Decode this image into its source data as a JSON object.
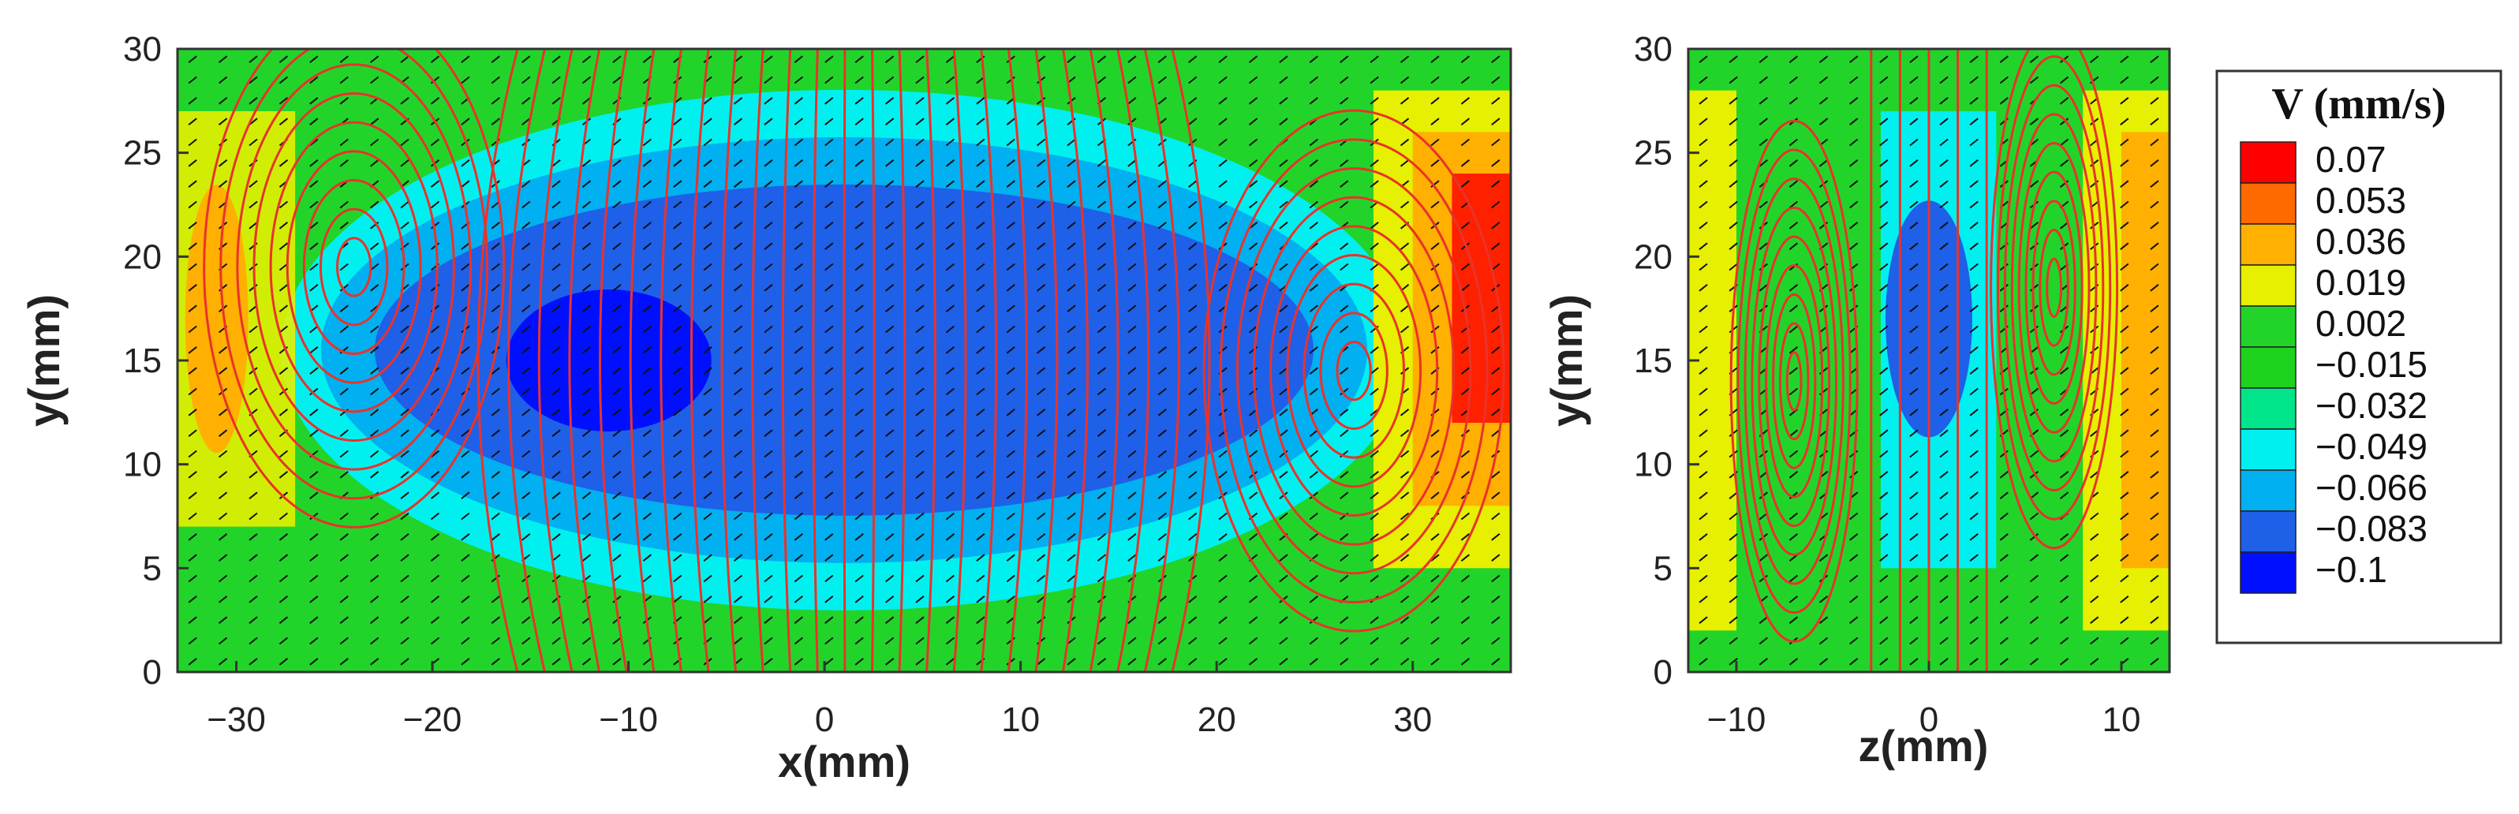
{
  "chart_data": [
    {
      "type": "heatmap",
      "panel": "x-y plane",
      "xlabel": "x(mm)",
      "ylabel": "y(mm)",
      "xlim": [
        -33,
        35
      ],
      "ylim": [
        0,
        30
      ],
      "x_ticks": [
        -30,
        -20,
        -10,
        0,
        10,
        20,
        30
      ],
      "x_tick_labels": [
        "−30",
        "−20",
        "−10",
        "0",
        "10",
        "20",
        "30"
      ],
      "y_ticks": [
        0,
        5,
        10,
        15,
        20,
        25,
        30
      ],
      "y_tick_labels": [
        "0",
        "5",
        "10",
        "15",
        "20",
        "25",
        "30"
      ],
      "vortex_centers": [
        {
          "x": -24,
          "y": 19.5
        },
        {
          "x": 27,
          "y": 14.5
        }
      ],
      "overlay": "streamlines and velocity vectors"
    },
    {
      "type": "heatmap",
      "panel": "z-y plane",
      "xlabel": "z(mm)",
      "ylabel": "y(mm)",
      "xlim": [
        -12.5,
        12.5
      ],
      "ylim": [
        0,
        30
      ],
      "x_ticks": [
        -10,
        0,
        10
      ],
      "x_tick_labels": [
        "−10",
        "0",
        "10"
      ],
      "y_ticks": [
        0,
        5,
        10,
        15,
        20,
        25,
        30
      ],
      "y_tick_labels": [
        "0",
        "5",
        "10",
        "15",
        "20",
        "25",
        "30"
      ],
      "vortex_centers": [
        {
          "x": -7,
          "y": 14
        },
        {
          "x": 6.5,
          "y": 18.5
        }
      ],
      "overlay": "streamlines and velocity vectors"
    }
  ],
  "legend": {
    "title": "V (mm/s)",
    "levels": [
      {
        "label": "0.07",
        "color": "#ff0000"
      },
      {
        "label": "0.053",
        "color": "#ff6a00"
      },
      {
        "label": "0.036",
        "color": "#ffb000"
      },
      {
        "label": "0.019",
        "color": "#e6f000"
      },
      {
        "label": "0.002",
        "color": "#22d42a"
      },
      {
        "label": "−0.015",
        "color": "#1ed21e"
      },
      {
        "label": "−0.032",
        "color": "#00e58a"
      },
      {
        "label": "−0.049",
        "color": "#00f0f0"
      },
      {
        "label": "−0.066",
        "color": "#00b0f0"
      },
      {
        "label": "−0.083",
        "color": "#1f60e8"
      },
      {
        "label": "−0.1",
        "color": "#0010ff"
      }
    ]
  },
  "colors": {
    "streamline": "#e8332b",
    "vector": "#111111",
    "low": "#1f60e8",
    "lowest": "#0010ff",
    "mid_low": "#00b0f0",
    "cyan": "#00f0f0",
    "green": "#22d42a",
    "yellow": "#e6f000",
    "orange": "#ffb000",
    "red": "#ff2000"
  }
}
